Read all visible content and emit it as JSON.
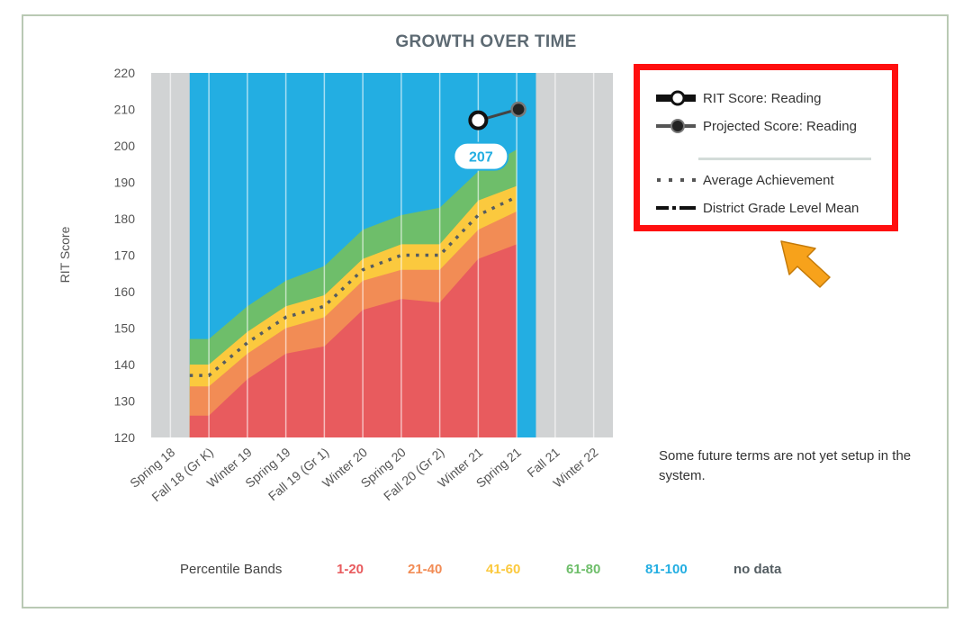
{
  "chart_data": {
    "type": "area",
    "title": "GROWTH OVER TIME",
    "ylabel": "RIT Score",
    "ylim": [
      120,
      220
    ],
    "yticks": [
      120,
      130,
      140,
      150,
      160,
      170,
      180,
      190,
      200,
      210,
      220
    ],
    "categories": [
      "Spring 18",
      "Fall 18 (Gr K)",
      "Winter 19",
      "Spring 19",
      "Fall 19 (Gr 1)",
      "Winter 20",
      "Spring 20",
      "Fall 20 (Gr 2)",
      "Winter 21",
      "Spring 21",
      "Fall 21",
      "Winter 22"
    ],
    "data_range": [
      "Fall 18 (Gr K)",
      "Spring 21"
    ],
    "band_boundaries": {
      "p20": [
        null,
        126,
        136,
        143,
        145,
        155,
        158,
        157,
        169,
        173,
        null,
        null
      ],
      "p40": [
        null,
        134,
        143,
        150,
        153,
        163,
        166,
        166,
        177,
        182,
        null,
        null
      ],
      "p60": [
        null,
        140,
        149,
        156,
        159,
        169,
        173,
        173,
        185,
        189,
        null,
        null
      ],
      "p80": [
        null,
        147,
        156,
        163,
        167,
        177,
        181,
        183,
        193,
        199,
        null,
        null
      ]
    },
    "average_achievement": [
      null,
      137,
      146,
      153,
      156,
      166,
      170,
      170,
      181,
      186,
      null,
      null
    ],
    "rit_score": {
      "term": "Winter 21",
      "value": 207,
      "label": "207"
    },
    "projected_score": {
      "term": "Spring 21",
      "value": 210
    },
    "legend": [
      {
        "name": "RIT Score: Reading",
        "icon": "rit-score-line-icon"
      },
      {
        "name": "Projected Score: Reading",
        "icon": "projected-score-line-icon"
      },
      {
        "name": "Average Achievement",
        "icon": "dotted-line-icon"
      },
      {
        "name": "District Grade Level Mean",
        "icon": "dash-dot-line-icon"
      }
    ],
    "legend_placement": "right",
    "colors": {
      "p1_20": "#e85b5e",
      "p21_40": "#f28c55",
      "p41_60": "#fbc93e",
      "p61_80": "#6ebe6a",
      "p81_100": "#23aee2",
      "no_data": "#d1d3d4",
      "highlight": "#ff0f0f",
      "arrow": "#f7a21b"
    }
  },
  "note": "Some future terms are not yet setup in the system.",
  "percentile_bands": {
    "label": "Percentile Bands",
    "items": [
      {
        "label": "1-20",
        "color": "#e85b5e"
      },
      {
        "label": "21-40",
        "color": "#f28c55"
      },
      {
        "label": "41-60",
        "color": "#fbc93e"
      },
      {
        "label": "61-80",
        "color": "#6ebe6a"
      },
      {
        "label": "81-100",
        "color": "#23aee2"
      },
      {
        "label": "no data",
        "color": "#555e63"
      }
    ]
  }
}
